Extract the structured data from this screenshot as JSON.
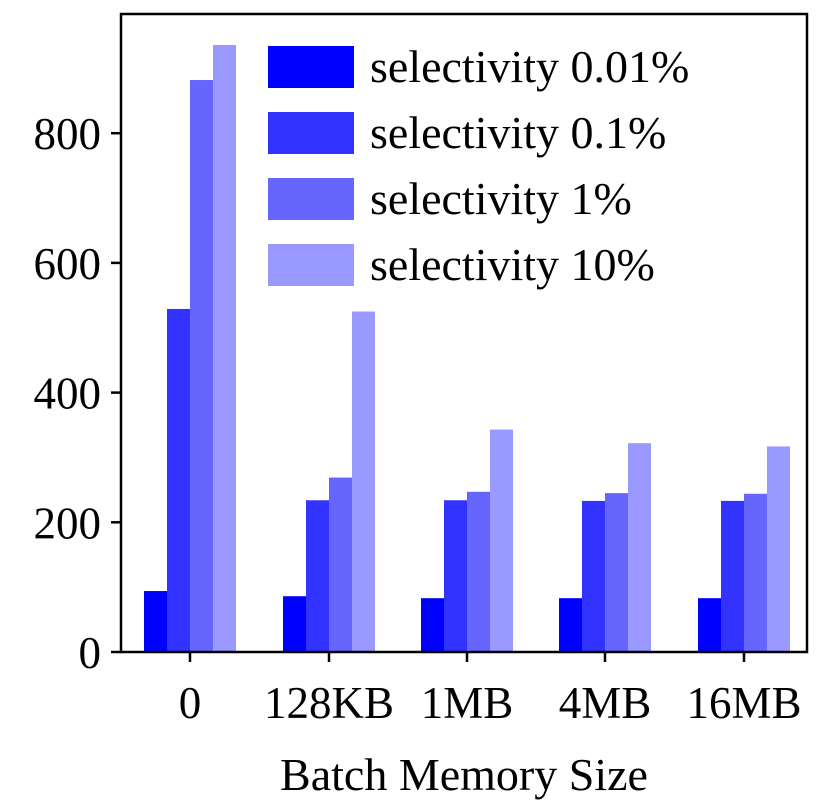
{
  "chart_data": {
    "type": "bar",
    "title": "",
    "xlabel": "Batch Memory Size",
    "ylabel": "",
    "categories": [
      "0",
      "128KB",
      "1MB",
      "4MB",
      "16MB"
    ],
    "series": [
      {
        "name": "selectivity 0.01%",
        "color": "#0000ff",
        "values": [
          94,
          86,
          83,
          83,
          83
        ]
      },
      {
        "name": "selectivity 0.1%",
        "color": "#3333ff",
        "values": [
          529,
          234,
          234,
          233,
          233
        ]
      },
      {
        "name": "selectivity 1%",
        "color": "#6666ff",
        "values": [
          882,
          269,
          247,
          245,
          244
        ]
      },
      {
        "name": "selectivity 10%",
        "color": "#9999ff",
        "values": [
          936,
          525,
          343,
          322,
          317
        ]
      }
    ],
    "ylim": [
      0,
      1000
    ],
    "yticks": [
      "0",
      "200",
      "400",
      "600",
      "800"
    ],
    "grid": false,
    "legend_position": "top-right"
  }
}
